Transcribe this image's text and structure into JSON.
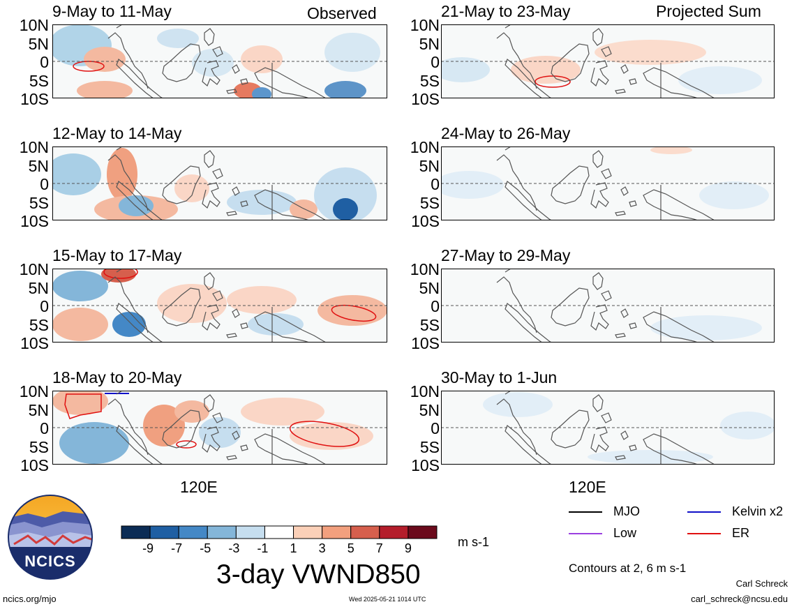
{
  "panels": {
    "left": [
      {
        "title": "9-May to 11-May",
        "corner_label": "Observed"
      },
      {
        "title": "12-May to 14-May",
        "corner_label": ""
      },
      {
        "title": "15-May to 17-May",
        "corner_label": ""
      },
      {
        "title": "18-May to 20-May",
        "corner_label": ""
      }
    ],
    "right": [
      {
        "title": "21-May to 23-May",
        "corner_label": "Projected Sum"
      },
      {
        "title": "24-May to 26-May",
        "corner_label": ""
      },
      {
        "title": "27-May to 29-May",
        "corner_label": ""
      },
      {
        "title": "30-May to 1-Jun",
        "corner_label": ""
      }
    ]
  },
  "lat_labels": [
    "10N",
    "5N",
    "0",
    "5S",
    "10S"
  ],
  "lon_label": "120E",
  "colorbar": {
    "labels": [
      "-9",
      "-7",
      "-5",
      "-3",
      "-1",
      "1",
      "3",
      "5",
      "7",
      "9"
    ],
    "colors": [
      "#0b2c55",
      "#1f5fa3",
      "#4488c6",
      "#84b6d9",
      "#c6deef",
      "#ffffff",
      "#fbd0b8",
      "#f2a07e",
      "#d65f4d",
      "#b41d2b",
      "#6b0a1c"
    ],
    "units": "m s-1"
  },
  "title": "3-day VWND850",
  "legend": [
    {
      "label": "MJO",
      "color": "#000000"
    },
    {
      "label": "Kelvin x2",
      "color": "#1010c8"
    },
    {
      "label": "Low",
      "color": "#9b3fe0"
    },
    {
      "label": "ER",
      "color": "#e01010"
    }
  ],
  "contour_note": "Contours at 2, 6 m s-1",
  "author": "Carl Schreck",
  "email": "carl_schreck@ncsu.edu",
  "url": "ncics.org/mjo",
  "timestamp": "Wed 2025-05-21 1014 UTC",
  "logo_text": "NCICS"
}
